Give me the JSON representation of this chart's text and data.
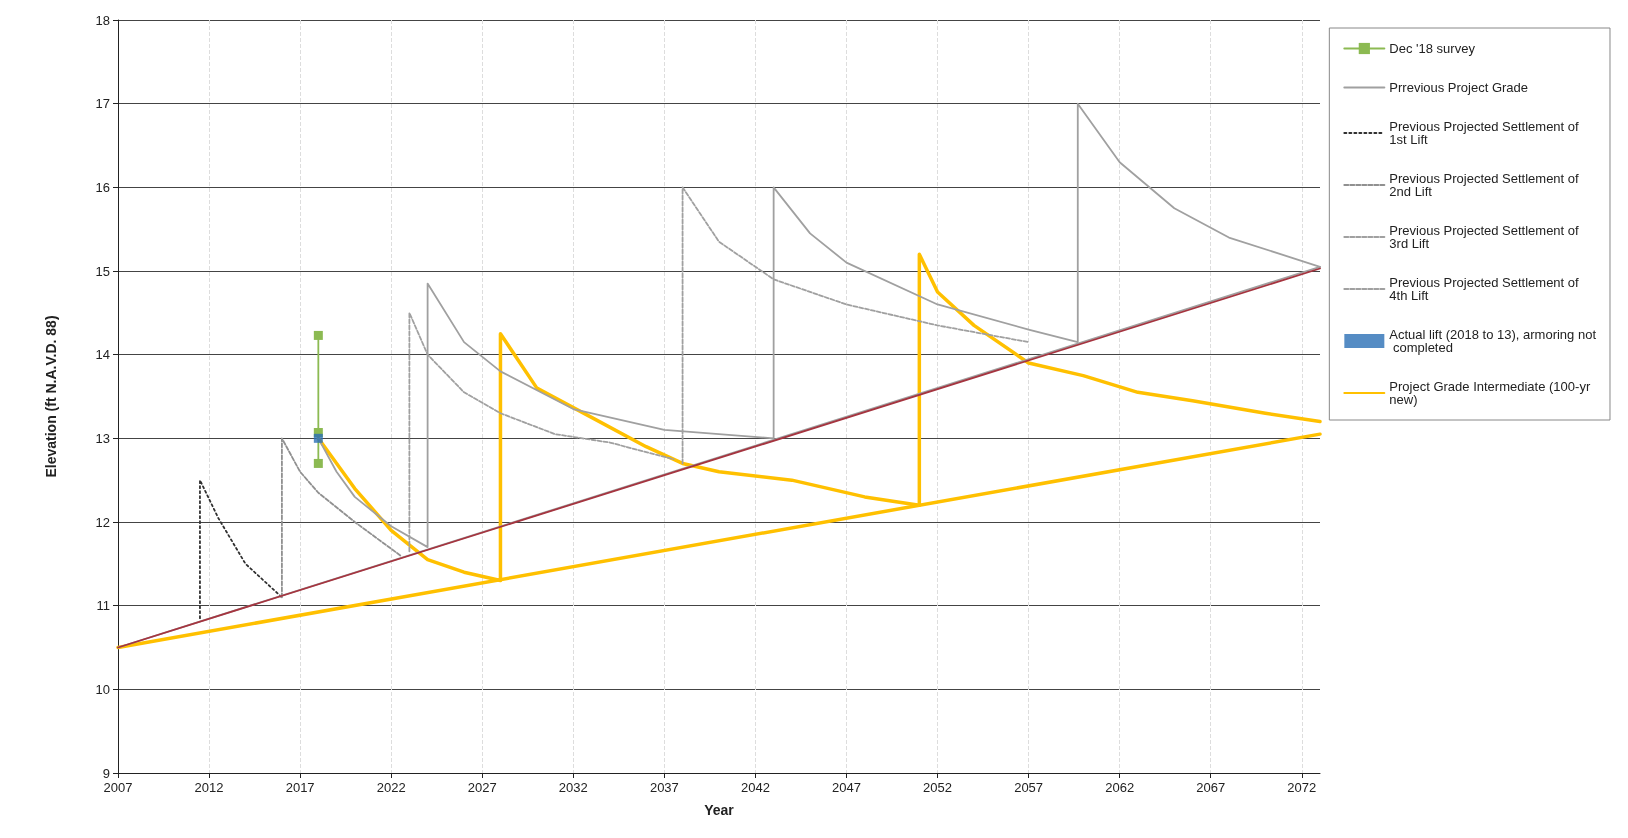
{
  "chart_data": {
    "type": "line",
    "xlabel": "Year",
    "ylabel": "Elevation (ft N.A.V.D. 88)",
    "xlim": [
      2007,
      2073
    ],
    "xticks": [
      2007,
      2012,
      2017,
      2022,
      2027,
      2032,
      2037,
      2042,
      2047,
      2052,
      2057,
      2062,
      2067,
      2072
    ],
    "ylim": [
      9,
      18
    ],
    "yticks": [
      9,
      10,
      11,
      12,
      13,
      14,
      15,
      16,
      17,
      18
    ],
    "grid": true,
    "legend": "right",
    "series": [
      {
        "name": "Dec '18 survey",
        "color": "#8cba52",
        "marker": "square",
        "line_style": "solid",
        "x": [
          2018,
          2018,
          2018
        ],
        "values": [
          12.7,
          13.07,
          14.23
        ]
      },
      {
        "name": "Prrevious Project Grade",
        "color": "#a0a0a0",
        "marker": "none",
        "line_style": "solid",
        "x": [
          2018,
          2019,
          2020,
          2022,
          2024,
          2024,
          2026,
          2028,
          2032,
          2037,
          2043,
          2043,
          2045,
          2047,
          2052,
          2057,
          2059.7,
          2059.7,
          2062,
          2065,
          2068,
          2073
        ],
        "values": [
          13.0,
          12.6,
          12.3,
          11.95,
          11.7,
          14.85,
          14.15,
          13.8,
          13.35,
          13.1,
          13.0,
          16.0,
          15.45,
          15.1,
          14.6,
          14.3,
          14.15,
          17.0,
          16.3,
          15.75,
          15.4,
          15.05
        ]
      },
      {
        "name": "Previous Projected Settlement of 1st Lift",
        "color": "#303030",
        "marker": "none",
        "line_style": "dotted",
        "x": [
          2011.5,
          2011.5,
          2012.5,
          2014,
          2016
        ],
        "values": [
          10.85,
          12.5,
          12.05,
          11.5,
          11.1
        ]
      },
      {
        "name": "Previous Projected Settlement of 2nd Lift",
        "color": "#909090",
        "marker": "none",
        "line_style": "dashed",
        "x": [
          2016,
          2016,
          2017,
          2018,
          2020,
          2022.5
        ],
        "values": [
          11.1,
          13.0,
          12.6,
          12.35,
          12.0,
          11.6
        ]
      },
      {
        "name": "Previous Projected Settlement of 3rd Lift",
        "color": "#a0a0a0",
        "marker": "none",
        "line_style": "dashed",
        "x": [
          2023,
          2023,
          2024,
          2026,
          2028,
          2031,
          2034,
          2037.5
        ],
        "values": [
          11.65,
          14.5,
          14.0,
          13.55,
          13.3,
          13.05,
          12.95,
          12.75
        ]
      },
      {
        "name": "Previous Projected Settlement of 4th Lift",
        "color": "#a0a0a0",
        "marker": "none",
        "line_style": "dashed",
        "x": [
          2038,
          2038,
          2040,
          2043,
          2047,
          2052,
          2057
        ],
        "values": [
          12.7,
          16.0,
          15.35,
          14.9,
          14.6,
          14.35,
          14.15
        ]
      },
      {
        "name": "Actual lift (2018 to 13), armoring not completed",
        "type": "scatter",
        "color": "#2a6fb5",
        "marker": "square",
        "x": [
          2018
        ],
        "values": [
          13.0
        ]
      },
      {
        "name": "Project Grade Intermediate (100-yr new)",
        "color": "#ffc000",
        "marker": "none",
        "line_style": "solid",
        "x": [
          2018,
          2020,
          2022,
          2024,
          2026,
          2028,
          2028,
          2030,
          2033,
          2036,
          2038,
          2040,
          2044,
          2048,
          2051,
          2051,
          2052,
          2054,
          2057,
          2060,
          2063,
          2066,
          2070,
          2073
        ],
        "values": [
          13.0,
          12.4,
          11.9,
          11.55,
          11.4,
          11.3,
          14.25,
          13.6,
          13.25,
          12.9,
          12.7,
          12.6,
          12.5,
          12.3,
          12.2,
          15.2,
          14.75,
          14.35,
          13.9,
          13.75,
          13.55,
          13.45,
          13.3,
          13.2
        ]
      },
      {
        "color": "#a0a0a0",
        "marker": "none",
        "line_style": "solid",
        "x": [
          2007,
          2073
        ],
        "values": [
          10.5,
          15.05
        ]
      },
      {
        "color": "#ffc000",
        "marker": "none",
        "line_style": "solid",
        "x": [
          2007,
          2073
        ],
        "values": [
          10.5,
          13.05
        ]
      },
      {
        "color": "#a5343f",
        "marker": "none",
        "line_style": "solid",
        "x": [
          2007,
          2073
        ],
        "values": [
          10.5,
          15.03
        ]
      }
    ]
  }
}
